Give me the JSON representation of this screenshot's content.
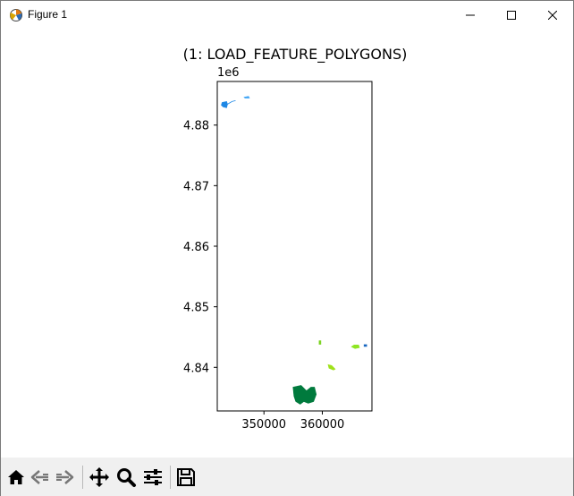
{
  "window": {
    "title": "Figure 1",
    "icons": {
      "app": "matplotlib-icon",
      "minimize": "minimize-icon",
      "maximize": "maximize-icon",
      "close": "close-icon"
    }
  },
  "plot": {
    "title": "(1: LOAD_FEATURE_POLYGONS)",
    "y_offset_label": "1e6",
    "x_ticks": [
      "350000",
      "360000"
    ],
    "y_ticks": [
      "4.88",
      "4.87",
      "4.86",
      "4.85",
      "4.84"
    ]
  },
  "chart_data": {
    "type": "map",
    "title": "(1: LOAD_FEATURE_POLYGONS)",
    "xlabel": "",
    "ylabel": "",
    "y_scale_offset": "1e6",
    "xlim": [
      342000,
      368500
    ],
    "ylim": [
      4.8328,
      4.8872
    ],
    "x_tick_values": [
      350000,
      360000
    ],
    "y_tick_values": [
      4.84,
      4.85,
      4.86,
      4.87,
      4.88
    ],
    "features": [
      {
        "name": "blue-polygon-northwest",
        "color": "#1e88e5",
        "x": 343300,
        "y": 4.8833
      },
      {
        "name": "light-blue-polygon-north",
        "color": "#42a5f5",
        "x": 346900,
        "y": 4.8846
      },
      {
        "name": "green-dot-center",
        "color": "#7bd321",
        "x": 359600,
        "y": 4.8441
      },
      {
        "name": "green-polygon-east",
        "color": "#8ee623",
        "x": 365600,
        "y": 4.8434
      },
      {
        "name": "blue-polygon-east",
        "color": "#1565c0",
        "x": 367300,
        "y": 4.8436
      },
      {
        "name": "lime-polygon-south",
        "color": "#9fe11a",
        "x": 361600,
        "y": 4.84
      },
      {
        "name": "dark-green-polygon-south",
        "color": "#007a3d",
        "x": 358200,
        "y": 4.8348
      }
    ]
  },
  "toolbar": {
    "buttons": [
      {
        "name": "home-button",
        "icon": "home-icon"
      },
      {
        "name": "back-button",
        "icon": "back-arrow-icon"
      },
      {
        "name": "forward-button",
        "icon": "forward-arrow-icon"
      },
      {
        "name": "pan-button",
        "icon": "move-icon"
      },
      {
        "name": "zoom-button",
        "icon": "zoom-icon"
      },
      {
        "name": "configure-button",
        "icon": "sliders-icon"
      },
      {
        "name": "save-button",
        "icon": "save-icon"
      }
    ]
  }
}
